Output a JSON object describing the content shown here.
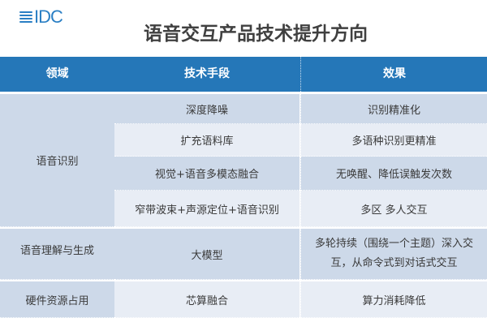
{
  "logo": {
    "text": "IDC"
  },
  "title": "语音交互产品技术提升方向",
  "header": {
    "col1": "领域",
    "col2": "技术手段",
    "col3": "效果"
  },
  "colors": {
    "header": "#2577b8",
    "row_dark": "#cdd9e9",
    "row_light": "#e8edf5"
  },
  "groups": [
    {
      "domain": "语音识别",
      "rows": [
        {
          "tech": "深度降噪",
          "effect": "识别精准化"
        },
        {
          "tech": "扩充语料库",
          "effect": "多语种识别更精准"
        },
        {
          "tech": "视觉+语音多模态融合",
          "effect": "无唤醒、降低误触发次数"
        },
        {
          "tech": "窄带波束+声源定位+语音识别",
          "effect": "多区 多人交互"
        }
      ]
    },
    {
      "domain": "语音理解与生成",
      "rows": [
        {
          "tech": "大模型",
          "effect": "多轮持续（围绕一个主题）深入交互，从命令式到对话式交互"
        }
      ]
    },
    {
      "domain": "硬件资源占用",
      "rows": [
        {
          "tech": "芯算融合",
          "effect": "算力消耗降低"
        }
      ]
    }
  ]
}
